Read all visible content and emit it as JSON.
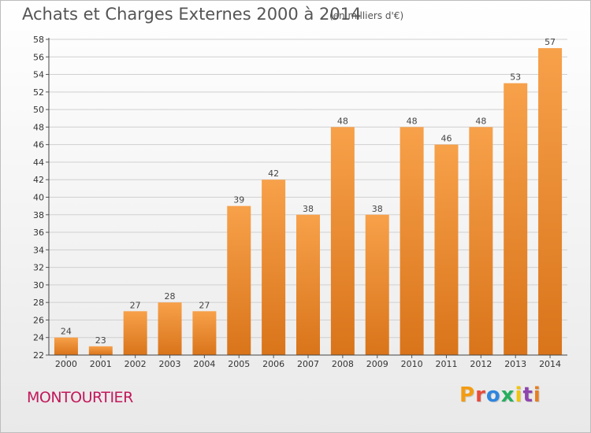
{
  "header": {
    "title": "Achats et Charges Externes 2000 à 2014",
    "subtitle": "(en milliers d'€)"
  },
  "footer": {
    "city": "MONTOURTIER",
    "brand": "Proxiti"
  },
  "colors": {
    "bar_top": "#f7a14a",
    "bar_bottom": "#d9741a",
    "grid": "#d0d0d0",
    "city": "#c2185b",
    "brand_letters": [
      "#f39c12",
      "#e74c3c",
      "#2e86de",
      "#27ae60",
      "#f1c40f",
      "#8e44ad",
      "#e67e22"
    ]
  },
  "chart_data": {
    "type": "bar",
    "categories": [
      "2000",
      "2001",
      "2002",
      "2003",
      "2004",
      "2005",
      "2006",
      "2007",
      "2008",
      "2009",
      "2010",
      "2011",
      "2012",
      "2013",
      "2014"
    ],
    "values": [
      24,
      23,
      27,
      28,
      27,
      39,
      42,
      38,
      48,
      38,
      48,
      46,
      48,
      53,
      57
    ],
    "xlabel": "",
    "ylabel": "",
    "ylim": [
      22,
      58
    ],
    "yticks": [
      22,
      24,
      26,
      28,
      30,
      32,
      34,
      36,
      38,
      40,
      42,
      44,
      46,
      48,
      50,
      52,
      54,
      56,
      58
    ],
    "grid": true,
    "data_labels": true
  }
}
